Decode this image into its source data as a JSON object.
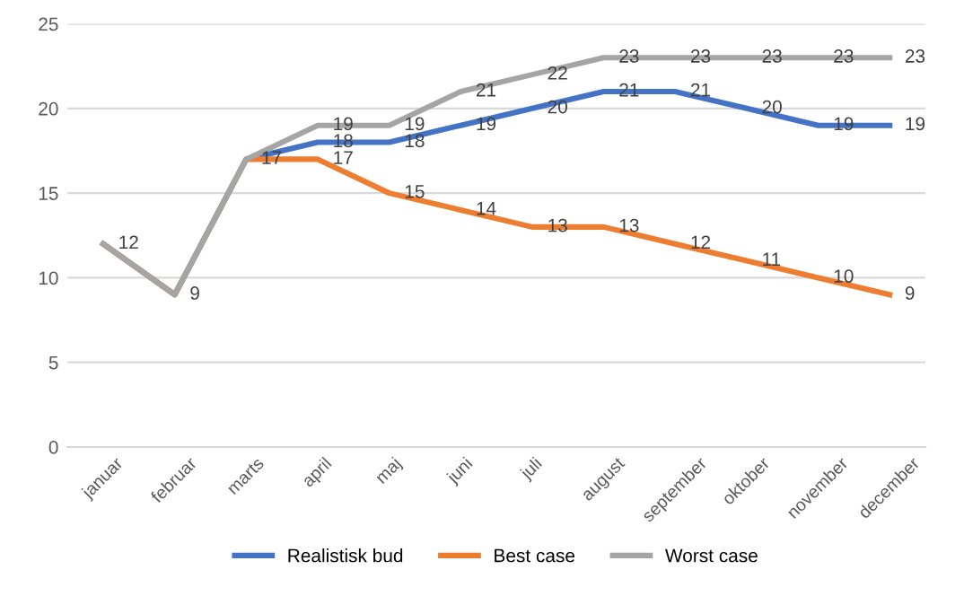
{
  "chart_data": {
    "type": "line",
    "categories": [
      "januar",
      "februar",
      "marts",
      "april",
      "maj",
      "juni",
      "juli",
      "august",
      "september",
      "oktober",
      "november",
      "december"
    ],
    "series": [
      {
        "name": "Realistisk bud",
        "color": "#4472c4",
        "values": [
          12,
          9,
          17,
          18,
          18,
          19,
          20,
          21,
          21,
          20,
          19,
          19
        ],
        "value_labels": [
          null,
          null,
          null,
          "18",
          "18",
          "19",
          "20",
          "21",
          "21",
          "20",
          "19",
          "19"
        ]
      },
      {
        "name": "Best case",
        "color": "#ed7d31",
        "values": [
          12,
          9,
          17,
          17,
          15,
          14,
          13,
          13,
          12,
          11,
          10,
          9
        ],
        "value_labels": [
          null,
          null,
          "17",
          "17",
          "15",
          "14",
          "13",
          "13",
          "12",
          "11",
          "10",
          "9"
        ]
      },
      {
        "name": "Worst case",
        "color": "#a5a5a5",
        "values": [
          12,
          9,
          17,
          19,
          19,
          21,
          22,
          23,
          23,
          23,
          23,
          23
        ],
        "value_labels": [
          "12",
          "9",
          null,
          "19",
          "19",
          "21",
          "22",
          "23",
          "23",
          "23",
          "23",
          "23"
        ]
      }
    ],
    "ylim": [
      0,
      25
    ],
    "yticks": [
      0,
      5,
      10,
      15,
      20,
      25
    ],
    "grid": "y",
    "legend": "bottom",
    "marker": "none",
    "line_style": "solid"
  }
}
